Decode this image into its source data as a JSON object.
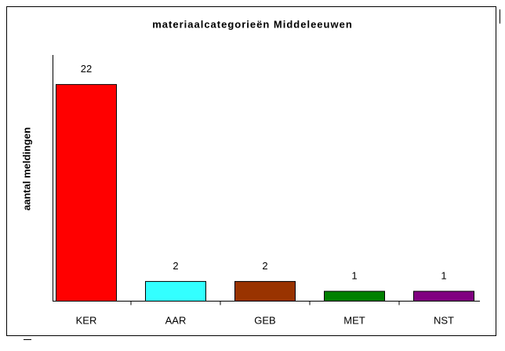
{
  "chart_data": {
    "type": "bar",
    "title": "materiaalcategorieën Middeleeuwen",
    "y_label": "aantal meldingen",
    "categories": [
      "KER",
      "AAR",
      "GEB",
      "MET",
      "NST"
    ],
    "values": [
      22,
      2,
      2,
      1,
      1
    ],
    "colors": [
      "#ff0000",
      "#33ffff",
      "#993300",
      "#008000",
      "#800080"
    ],
    "ylim": [
      0,
      25
    ]
  }
}
